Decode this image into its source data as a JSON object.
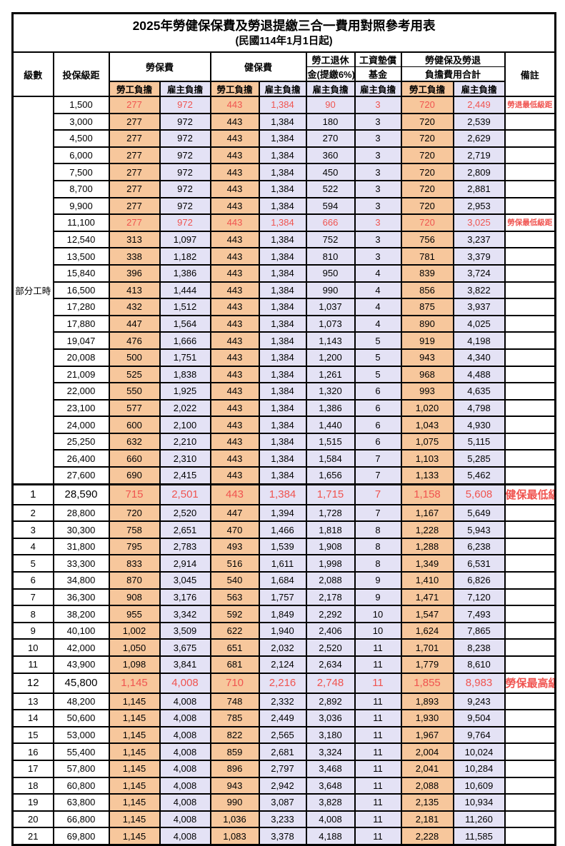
{
  "title": {
    "line1": "2025年勞健保保費及勞退提繳三合一費用對照參考用表",
    "line2": "(民國114年1月1日起)"
  },
  "columns": {
    "level": "級數",
    "bracket": "投保級距",
    "labor_fee": "勞保費",
    "health_fee": "健保費",
    "pension_line1": "勞工退休",
    "pension_line2": "金(提繳6%)",
    "wage_fund_line1": "工資墊償",
    "wage_fund_line2": "基金",
    "total_line1": "勞健保及勞退",
    "total_line2": "負擔費用合計",
    "remark": "備註",
    "employee_label": "勞工負擔",
    "employer_label": "雇主負擔"
  },
  "part_time_label": "部分工時",
  "colors": {
    "employee_bg": "#F7C79C",
    "employer_bg": "#E4E2F5",
    "highlight_text": "#F05450",
    "border": "#000000"
  },
  "rows": [
    {
      "level": "",
      "bracket": "1,500",
      "values": [
        "277",
        "972",
        "443",
        "1,384",
        "90",
        "3",
        "720",
        "2,449"
      ],
      "highlight": true,
      "big": false,
      "note": "勞退最低級距"
    },
    {
      "level": "",
      "bracket": "3,000",
      "values": [
        "277",
        "972",
        "443",
        "1,384",
        "180",
        "3",
        "720",
        "2,539"
      ],
      "highlight": false,
      "big": false,
      "note": ""
    },
    {
      "level": "",
      "bracket": "4,500",
      "values": [
        "277",
        "972",
        "443",
        "1,384",
        "270",
        "3",
        "720",
        "2,629"
      ],
      "highlight": false,
      "big": false,
      "note": ""
    },
    {
      "level": "",
      "bracket": "6,000",
      "values": [
        "277",
        "972",
        "443",
        "1,384",
        "360",
        "3",
        "720",
        "2,719"
      ],
      "highlight": false,
      "big": false,
      "note": ""
    },
    {
      "level": "",
      "bracket": "7,500",
      "values": [
        "277",
        "972",
        "443",
        "1,384",
        "450",
        "3",
        "720",
        "2,809"
      ],
      "highlight": false,
      "big": false,
      "note": ""
    },
    {
      "level": "",
      "bracket": "8,700",
      "values": [
        "277",
        "972",
        "443",
        "1,384",
        "522",
        "3",
        "720",
        "2,881"
      ],
      "highlight": false,
      "big": false,
      "note": ""
    },
    {
      "level": "",
      "bracket": "9,900",
      "values": [
        "277",
        "972",
        "443",
        "1,384",
        "594",
        "3",
        "720",
        "2,953"
      ],
      "highlight": false,
      "big": false,
      "note": ""
    },
    {
      "level": "",
      "bracket": "11,100",
      "values": [
        "277",
        "972",
        "443",
        "1,384",
        "666",
        "3",
        "720",
        "3,025"
      ],
      "highlight": true,
      "big": false,
      "note": "勞保最低級距"
    },
    {
      "level": "",
      "bracket": "12,540",
      "values": [
        "313",
        "1,097",
        "443",
        "1,384",
        "752",
        "3",
        "756",
        "3,237"
      ],
      "highlight": false,
      "big": false,
      "note": ""
    },
    {
      "level": "",
      "bracket": "13,500",
      "values": [
        "338",
        "1,182",
        "443",
        "1,384",
        "810",
        "3",
        "781",
        "3,379"
      ],
      "highlight": false,
      "big": false,
      "note": ""
    },
    {
      "level": "",
      "bracket": "15,840",
      "values": [
        "396",
        "1,386",
        "443",
        "1,384",
        "950",
        "4",
        "839",
        "3,724"
      ],
      "highlight": false,
      "big": false,
      "note": ""
    },
    {
      "level": "",
      "bracket": "16,500",
      "values": [
        "413",
        "1,444",
        "443",
        "1,384",
        "990",
        "4",
        "856",
        "3,822"
      ],
      "highlight": false,
      "big": false,
      "note": ""
    },
    {
      "level": "",
      "bracket": "17,280",
      "values": [
        "432",
        "1,512",
        "443",
        "1,384",
        "1,037",
        "4",
        "875",
        "3,937"
      ],
      "highlight": false,
      "big": false,
      "note": ""
    },
    {
      "level": "",
      "bracket": "17,880",
      "values": [
        "447",
        "1,564",
        "443",
        "1,384",
        "1,073",
        "4",
        "890",
        "4,025"
      ],
      "highlight": false,
      "big": false,
      "note": ""
    },
    {
      "level": "",
      "bracket": "19,047",
      "values": [
        "476",
        "1,666",
        "443",
        "1,384",
        "1,143",
        "5",
        "919",
        "4,198"
      ],
      "highlight": false,
      "big": false,
      "note": ""
    },
    {
      "level": "",
      "bracket": "20,008",
      "values": [
        "500",
        "1,751",
        "443",
        "1,384",
        "1,200",
        "5",
        "943",
        "4,340"
      ],
      "highlight": false,
      "big": false,
      "note": ""
    },
    {
      "level": "",
      "bracket": "21,009",
      "values": [
        "525",
        "1,838",
        "443",
        "1,384",
        "1,261",
        "5",
        "968",
        "4,488"
      ],
      "highlight": false,
      "big": false,
      "note": ""
    },
    {
      "level": "",
      "bracket": "22,000",
      "values": [
        "550",
        "1,925",
        "443",
        "1,384",
        "1,320",
        "6",
        "993",
        "4,635"
      ],
      "highlight": false,
      "big": false,
      "note": ""
    },
    {
      "level": "",
      "bracket": "23,100",
      "values": [
        "577",
        "2,022",
        "443",
        "1,384",
        "1,386",
        "6",
        "1,020",
        "4,798"
      ],
      "highlight": false,
      "big": false,
      "note": ""
    },
    {
      "level": "",
      "bracket": "24,000",
      "values": [
        "600",
        "2,100",
        "443",
        "1,384",
        "1,440",
        "6",
        "1,043",
        "4,930"
      ],
      "highlight": false,
      "big": false,
      "note": ""
    },
    {
      "level": "",
      "bracket": "25,250",
      "values": [
        "632",
        "2,210",
        "443",
        "1,384",
        "1,515",
        "6",
        "1,075",
        "5,115"
      ],
      "highlight": false,
      "big": false,
      "note": ""
    },
    {
      "level": "",
      "bracket": "26,400",
      "values": [
        "660",
        "2,310",
        "443",
        "1,384",
        "1,584",
        "7",
        "1,103",
        "5,285"
      ],
      "highlight": false,
      "big": false,
      "note": ""
    },
    {
      "level": "",
      "bracket": "27,600",
      "values": [
        "690",
        "2,415",
        "443",
        "1,384",
        "1,656",
        "7",
        "1,133",
        "5,462"
      ],
      "highlight": false,
      "big": false,
      "note": ""
    },
    {
      "level": "1",
      "bracket": "28,590",
      "values": [
        "715",
        "2,501",
        "443",
        "1,384",
        "1,715",
        "7",
        "1,158",
        "5,608"
      ],
      "highlight": true,
      "big": true,
      "note": "健保最低級距"
    },
    {
      "level": "2",
      "bracket": "28,800",
      "values": [
        "720",
        "2,520",
        "447",
        "1,394",
        "1,728",
        "7",
        "1,167",
        "5,649"
      ],
      "highlight": false,
      "big": false,
      "note": ""
    },
    {
      "level": "3",
      "bracket": "30,300",
      "values": [
        "758",
        "2,651",
        "470",
        "1,466",
        "1,818",
        "8",
        "1,228",
        "5,943"
      ],
      "highlight": false,
      "big": false,
      "note": ""
    },
    {
      "level": "4",
      "bracket": "31,800",
      "values": [
        "795",
        "2,783",
        "493",
        "1,539",
        "1,908",
        "8",
        "1,288",
        "6,238"
      ],
      "highlight": false,
      "big": false,
      "note": ""
    },
    {
      "level": "5",
      "bracket": "33,300",
      "values": [
        "833",
        "2,914",
        "516",
        "1,611",
        "1,998",
        "8",
        "1,349",
        "6,531"
      ],
      "highlight": false,
      "big": false,
      "note": ""
    },
    {
      "level": "6",
      "bracket": "34,800",
      "values": [
        "870",
        "3,045",
        "540",
        "1,684",
        "2,088",
        "9",
        "1,410",
        "6,826"
      ],
      "highlight": false,
      "big": false,
      "note": ""
    },
    {
      "level": "7",
      "bracket": "36,300",
      "values": [
        "908",
        "3,176",
        "563",
        "1,757",
        "2,178",
        "9",
        "1,471",
        "7,120"
      ],
      "highlight": false,
      "big": false,
      "note": ""
    },
    {
      "level": "8",
      "bracket": "38,200",
      "values": [
        "955",
        "3,342",
        "592",
        "1,849",
        "2,292",
        "10",
        "1,547",
        "7,493"
      ],
      "highlight": false,
      "big": false,
      "note": ""
    },
    {
      "level": "9",
      "bracket": "40,100",
      "values": [
        "1,002",
        "3,509",
        "622",
        "1,940",
        "2,406",
        "10",
        "1,624",
        "7,865"
      ],
      "highlight": false,
      "big": false,
      "note": ""
    },
    {
      "level": "10",
      "bracket": "42,000",
      "values": [
        "1,050",
        "3,675",
        "651",
        "2,032",
        "2,520",
        "11",
        "1,701",
        "8,238"
      ],
      "highlight": false,
      "big": false,
      "note": ""
    },
    {
      "level": "11",
      "bracket": "43,900",
      "values": [
        "1,098",
        "3,841",
        "681",
        "2,124",
        "2,634",
        "11",
        "1,779",
        "8,610"
      ],
      "highlight": false,
      "big": false,
      "note": ""
    },
    {
      "level": "12",
      "bracket": "45,800",
      "values": [
        "1,145",
        "4,008",
        "710",
        "2,216",
        "2,748",
        "11",
        "1,855",
        "8,983"
      ],
      "highlight": true,
      "big": true,
      "note": "勞保最高級距"
    },
    {
      "level": "13",
      "bracket": "48,200",
      "values": [
        "1,145",
        "4,008",
        "748",
        "2,332",
        "2,892",
        "11",
        "1,893",
        "9,243"
      ],
      "highlight": false,
      "big": false,
      "note": ""
    },
    {
      "level": "14",
      "bracket": "50,600",
      "values": [
        "1,145",
        "4,008",
        "785",
        "2,449",
        "3,036",
        "11",
        "1,930",
        "9,504"
      ],
      "highlight": false,
      "big": false,
      "note": ""
    },
    {
      "level": "15",
      "bracket": "53,000",
      "values": [
        "1,145",
        "4,008",
        "822",
        "2,565",
        "3,180",
        "11",
        "1,967",
        "9,764"
      ],
      "highlight": false,
      "big": false,
      "note": ""
    },
    {
      "level": "16",
      "bracket": "55,400",
      "values": [
        "1,145",
        "4,008",
        "859",
        "2,681",
        "3,324",
        "11",
        "2,004",
        "10,024"
      ],
      "highlight": false,
      "big": false,
      "note": ""
    },
    {
      "level": "17",
      "bracket": "57,800",
      "values": [
        "1,145",
        "4,008",
        "896",
        "2,797",
        "3,468",
        "11",
        "2,041",
        "10,284"
      ],
      "highlight": false,
      "big": false,
      "note": ""
    },
    {
      "level": "18",
      "bracket": "60,800",
      "values": [
        "1,145",
        "4,008",
        "943",
        "2,942",
        "3,648",
        "11",
        "2,088",
        "10,609"
      ],
      "highlight": false,
      "big": false,
      "note": ""
    },
    {
      "level": "19",
      "bracket": "63,800",
      "values": [
        "1,145",
        "4,008",
        "990",
        "3,087",
        "3,828",
        "11",
        "2,135",
        "10,934"
      ],
      "highlight": false,
      "big": false,
      "note": ""
    },
    {
      "level": "20",
      "bracket": "66,800",
      "values": [
        "1,145",
        "4,008",
        "1,036",
        "3,233",
        "4,008",
        "11",
        "2,181",
        "11,260"
      ],
      "highlight": false,
      "big": false,
      "note": ""
    },
    {
      "level": "21",
      "bracket": "69,800",
      "values": [
        "1,145",
        "4,008",
        "1,083",
        "3,378",
        "4,188",
        "11",
        "2,228",
        "11,585"
      ],
      "highlight": false,
      "big": false,
      "note": ""
    }
  ]
}
